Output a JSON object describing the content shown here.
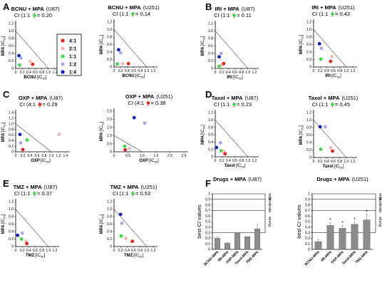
{
  "colors": {
    "4:1": "#e8221f",
    "2:1": "#f4b8b8",
    "1:1": "#3fd84a",
    "1:2": "#a8a8e8",
    "1:4": "#121fc4",
    "axis": "#000000",
    "line": "#808080",
    "bar": "#8c8c8c"
  },
  "legend": [
    {
      "label": "4:1",
      "key": "4:1"
    },
    {
      "label": "2:1",
      "key": "2:1"
    },
    {
      "label": "1:1",
      "key": "1:1"
    },
    {
      "label": "1:2",
      "key": "1:2"
    },
    {
      "label": "1:4",
      "key": "1:4"
    }
  ],
  "panel_labels": [
    "A",
    "B",
    "C",
    "D",
    "E",
    "F"
  ],
  "chart_data": [
    {
      "type": "scatter",
      "panel": "A",
      "title": "BCNU + MPA",
      "cell": "(U87)",
      "ci_prefix": "CI (1:1",
      "ci_value": ") = 0.20",
      "ci_color": "1:1",
      "xlabel": "BCNU",
      "ylabel": "MPA",
      "xlim": [
        0,
        1.2
      ],
      "ylim": [
        0,
        1.2
      ],
      "xticks": [
        "0",
        "0.2",
        "0.4",
        "0.6",
        "0.8",
        "1.0",
        "1.2"
      ],
      "yticks": [
        "0",
        "0.2",
        "0.4",
        "0.6",
        "0.8",
        "1.0",
        "1.2"
      ],
      "line_x_end": 1.0,
      "points": [
        {
          "x": 0.1,
          "y": 0.34,
          "c": "1:4"
        },
        {
          "x": 0.16,
          "y": 0.28,
          "c": "1:2"
        },
        {
          "x": 0.12,
          "y": 0.09,
          "c": "1:1"
        },
        {
          "x": 0.44,
          "y": 0.19,
          "c": "2:1"
        },
        {
          "x": 0.52,
          "y": 0.11,
          "c": "4:1"
        }
      ]
    },
    {
      "type": "scatter",
      "panel": "A2",
      "title": "BCNU + MPA",
      "cell": "(U251)",
      "ci_prefix": "CI (1:1",
      "ci_value": ") = 0.14",
      "ci_color": "1:1",
      "xlabel": "BCNU",
      "ylabel": "MPA",
      "xlim": [
        0,
        1.2
      ],
      "ylim": [
        0,
        1.2
      ],
      "xticks": [
        "0",
        "0.2",
        "0.4",
        "0.6",
        "0.8",
        "1.0",
        "1.2"
      ],
      "yticks": [
        "0",
        "0.2",
        "0.4",
        "0.6",
        "0.8",
        "1.0",
        "1.2"
      ],
      "line_x_end": 1.0,
      "points": [
        {
          "x": 0.14,
          "y": 0.46,
          "c": "1:4"
        },
        {
          "x": 0.2,
          "y": 0.38,
          "c": "1:2"
        },
        {
          "x": 0.1,
          "y": 0.08,
          "c": "1:1"
        },
        {
          "x": 0.26,
          "y": 0.09,
          "c": "2:1"
        },
        {
          "x": 0.44,
          "y": 0.09,
          "c": "4:1"
        }
      ]
    },
    {
      "type": "scatter",
      "panel": "B",
      "title": "IRI + MPA",
      "cell": "(U87)",
      "ci_prefix": "CI (1:1",
      "ci_value": ") = 0.11",
      "ci_color": "1:1",
      "xlabel": "IRI",
      "ylabel": "MPA",
      "xlim": [
        0,
        1.2
      ],
      "ylim": [
        0,
        1.2
      ],
      "xticks": [
        "0",
        "0.2",
        "0.4",
        "0.6",
        "0.8",
        "1.0",
        "1.2"
      ],
      "yticks": [
        "0",
        "0.2",
        "0.4",
        "0.6",
        "0.8",
        "1.0",
        "1.2"
      ],
      "line_x_end": 1.0,
      "points": [
        {
          "x": 0.12,
          "y": 0.31,
          "c": "1:4"
        },
        {
          "x": 0.18,
          "y": 0.4,
          "c": "1:2"
        },
        {
          "x": 0.12,
          "y": 0.06,
          "c": "1:1"
        },
        {
          "x": 0.2,
          "y": 0.09,
          "c": "2:1"
        },
        {
          "x": 0.26,
          "y": 0.13,
          "c": "4:1"
        }
      ]
    },
    {
      "type": "scatter",
      "panel": "B2",
      "title": "IRI + MPA",
      "cell": "(U251)",
      "ci_prefix": "CI (1:1",
      "ci_value": ") = 0.43",
      "ci_color": "1:1",
      "xlabel": "IRI",
      "ylabel": "MPA",
      "xlim": [
        0,
        1.2
      ],
      "ylim": [
        0,
        1.2
      ],
      "xticks": [
        "0",
        "0.2",
        "0.4",
        "0.6",
        "0.8",
        "1.0",
        "1.2"
      ],
      "yticks": [
        "0",
        "0.2",
        "0.4",
        "0.6",
        "0.8",
        "1.0",
        "1.2"
      ],
      "line_x_end": 1.0,
      "points": [
        {
          "x": 0.18,
          "y": 0.62,
          "c": "1:4"
        },
        {
          "x": 0.24,
          "y": 0.5,
          "c": "1:2"
        },
        {
          "x": 0.22,
          "y": 0.21,
          "c": "1:1"
        },
        {
          "x": 0.56,
          "y": 0.28,
          "c": "2:1"
        },
        {
          "x": 0.52,
          "y": 0.15,
          "c": "4:1"
        }
      ]
    },
    {
      "type": "scatter",
      "panel": "C",
      "title": "OXP + MPA",
      "cell": "(U87)",
      "ci_prefix": "CI (4:1",
      "ci_value": ") = 0.29",
      "ci_color": "4:1",
      "xlabel": "OXP",
      "ylabel": "MPA",
      "xlim": [
        0,
        1.4
      ],
      "ylim": [
        0,
        1.4
      ],
      "xticks": [
        "0",
        "0.2",
        "0.4",
        "0.6",
        "0.8",
        "1.0",
        "1.2",
        "1.4"
      ],
      "yticks": [
        "0",
        "0.2",
        "0.4",
        "0.6",
        "0.8",
        "1.0",
        "1.2",
        "1.4"
      ],
      "line_x_end": 1.0,
      "points": [
        {
          "x": 0.12,
          "y": 0.62,
          "c": "1:4"
        },
        {
          "x": 0.14,
          "y": 0.32,
          "c": "1:2"
        },
        {
          "x": 0.32,
          "y": 0.42,
          "c": "1:1"
        },
        {
          "x": 1.22,
          "y": 0.62,
          "c": "2:1"
        },
        {
          "x": 0.2,
          "y": 0.08,
          "c": "4:1"
        }
      ]
    },
    {
      "type": "scatter",
      "panel": "C2",
      "title": "OXP + MPA",
      "cell": "(U251)",
      "ci_prefix": "CI (4:1",
      "ci_value": ") = 0.38",
      "ci_color": "4:1",
      "xlabel": "OXP",
      "ylabel": "MPA",
      "xlim": [
        0,
        2.5
      ],
      "ylim": [
        0,
        2.5
      ],
      "xticks": [
        "0",
        "0.5",
        "1.0",
        "1.5",
        "2.0",
        "2.5"
      ],
      "yticks": [
        "0",
        "0.5",
        "1.0",
        "1.5",
        "2.0",
        "2.5"
      ],
      "line_x_end": 1.0,
      "points": [
        {
          "x": 0.72,
          "y": 2.1,
          "c": "1:4"
        },
        {
          "x": 1.1,
          "y": 1.76,
          "c": "1:2"
        },
        {
          "x": 0.38,
          "y": 0.34,
          "c": "1:1"
        },
        {
          "x": 0.56,
          "y": 0.2,
          "c": "2:1"
        },
        {
          "x": 0.4,
          "y": 0.12,
          "c": "4:1"
        }
      ]
    },
    {
      "type": "scatter",
      "panel": "D",
      "title": "Taxol + MPA",
      "cell": "(U87)",
      "ci_prefix": "CI (1:1",
      "ci_value": ") = 0.23",
      "ci_color": "1:1",
      "xlabel": "Taxol",
      "ylabel": "MPA",
      "xlim": [
        0,
        1.2
      ],
      "ylim": [
        0,
        1.2
      ],
      "xticks": [
        "0",
        "0.2",
        "0.4",
        "0.6",
        "0.8",
        "1.0",
        "1.2"
      ],
      "yticks": [
        "0",
        "0.2",
        "0.4",
        "0.6",
        "0.8",
        "1.0",
        "1.2"
      ],
      "line_x_end": 1.0,
      "points": [
        {
          "x": 0.04,
          "y": 0.25,
          "c": "1:4"
        },
        {
          "x": 0.16,
          "y": 0.38,
          "c": "1:2"
        },
        {
          "x": 0.18,
          "y": 0.16,
          "c": "1:1"
        },
        {
          "x": 0.26,
          "y": 0.14,
          "c": "2:1"
        },
        {
          "x": 0.3,
          "y": 0.08,
          "c": "4:1"
        }
      ]
    },
    {
      "type": "scatter",
      "panel": "D2",
      "title": "Taxol + MPA",
      "cell": "(U251)",
      "ci_prefix": "CI (1:1",
      "ci_value": ") = 0.45",
      "ci_color": "1:1",
      "xlabel": "Taxol",
      "ylabel": "MPA",
      "xlim": [
        0,
        1.2
      ],
      "ylim": [
        0,
        1.2
      ],
      "xticks": [
        "0",
        "0.2",
        "0.4",
        "0.6",
        "0.8",
        "1.0",
        "1.2"
      ],
      "yticks": [
        "0",
        "0.2",
        "0.4",
        "0.6",
        "0.8",
        "1.0",
        "1.2"
      ],
      "line_x_end": 1.0,
      "points": [
        {
          "x": 0.2,
          "y": 0.82,
          "c": "1:4"
        },
        {
          "x": 0.36,
          "y": 0.82,
          "c": "1:2"
        },
        {
          "x": 0.22,
          "y": 0.22,
          "c": "1:1"
        },
        {
          "x": 0.52,
          "y": 0.26,
          "c": "2:1"
        },
        {
          "x": 0.58,
          "y": 0.17,
          "c": "4:1"
        }
      ]
    },
    {
      "type": "scatter",
      "panel": "E",
      "title": "TMZ + MPA",
      "cell": "(U87)",
      "ci_prefix": "CI (1:1",
      "ci_value": ") = 0.37",
      "ci_color": "1:1",
      "xlabel": "TMZ",
      "ylabel": "MPA",
      "xlim": [
        0,
        1.2
      ],
      "ylim": [
        0,
        1.2
      ],
      "xticks": [
        "0",
        "0.2",
        "0.4",
        "0.6",
        "0.8",
        "1.0",
        "1.2"
      ],
      "yticks": [
        "0",
        "0.2",
        "0.4",
        "0.6",
        "0.8",
        "1.0",
        "1.2"
      ],
      "line_x_end": 1.0,
      "points": [
        {
          "x": 0.06,
          "y": 0.3,
          "c": "1:4"
        },
        {
          "x": 0.2,
          "y": 0.36,
          "c": "1:2"
        },
        {
          "x": 0.18,
          "y": 0.2,
          "c": "1:1"
        },
        {
          "x": 0.32,
          "y": 0.14,
          "c": "2:1"
        },
        {
          "x": 0.34,
          "y": 0.08,
          "c": "4:1"
        }
      ]
    },
    {
      "type": "scatter",
      "panel": "E2",
      "title": "TMZ + MPA",
      "cell": "(U251)",
      "ci_prefix": "CI (1:1",
      "ci_value": ") = 0.53",
      "ci_color": "1:1",
      "xlabel": "TMZ",
      "ylabel": "MPA",
      "xlim": [
        0,
        1.2
      ],
      "ylim": [
        0,
        1.2
      ],
      "xticks": [
        "0",
        "0.2",
        "0.4",
        "0.6",
        "0.8",
        "1.0",
        "1.2"
      ],
      "yticks": [
        "0",
        "0.2",
        "0.4",
        "0.6",
        "0.8",
        "1.0",
        "1.2"
      ],
      "line_x_end": 1.0,
      "points": [
        {
          "x": 0.2,
          "y": 0.86,
          "c": "1:4"
        },
        {
          "x": 0.24,
          "y": 0.62,
          "c": "1:2"
        },
        {
          "x": 0.22,
          "y": 0.28,
          "c": "1:1"
        },
        {
          "x": 0.36,
          "y": 0.22,
          "c": "2:1"
        },
        {
          "x": 0.56,
          "y": 0.14,
          "c": "4:1"
        }
      ]
    },
    {
      "type": "bar",
      "panel": "F",
      "title": "Drugs + MPA",
      "cell": "(U87)",
      "ylabel": "best CI values",
      "ylim": [
        0,
        1.0
      ],
      "yticks": [
        "0",
        "0.1",
        "0.2",
        "0.3",
        "0.4",
        "0.5",
        "0.6",
        "0.7",
        "0.8",
        "0.9",
        "1"
      ],
      "categories": [
        "BCNU-MPA",
        "IRI-MPA",
        "OXP-MPA",
        "Taxol-MPA",
        "TMZ-MPA"
      ],
      "values": [
        0.2,
        0.11,
        0.29,
        0.23,
        0.37
      ],
      "errors": [
        0.03,
        0.01,
        0.0,
        0.0,
        0.08
      ],
      "stars": [
        "",
        "",
        "",
        "",
        ""
      ],
      "zones": [
        "mild",
        "moderate",
        "strong"
      ]
    },
    {
      "type": "bar",
      "panel": "F2",
      "title": "Drugs + MPA",
      "cell": "(U251)",
      "ylabel": "best CI values",
      "ylim": [
        0,
        1.0
      ],
      "yticks": [
        "0",
        "0.1",
        "0.2",
        "0.3",
        "0.4",
        "0.5",
        "0.6",
        "0.7",
        "0.8",
        "0.9",
        "1"
      ],
      "categories": [
        "BCNU-MPA",
        "IRI-MPA",
        "OXP-MPA",
        "Taxol-MPA",
        "TMZ-MPA"
      ],
      "values": [
        0.14,
        0.43,
        0.38,
        0.45,
        0.53
      ],
      "errors": [
        0.04,
        0.05,
        0.05,
        0.04,
        0.1
      ],
      "stars": [
        "",
        "*",
        "*",
        "*",
        "*"
      ],
      "zones": [
        "mild",
        "moderate",
        "strong"
      ]
    }
  ]
}
